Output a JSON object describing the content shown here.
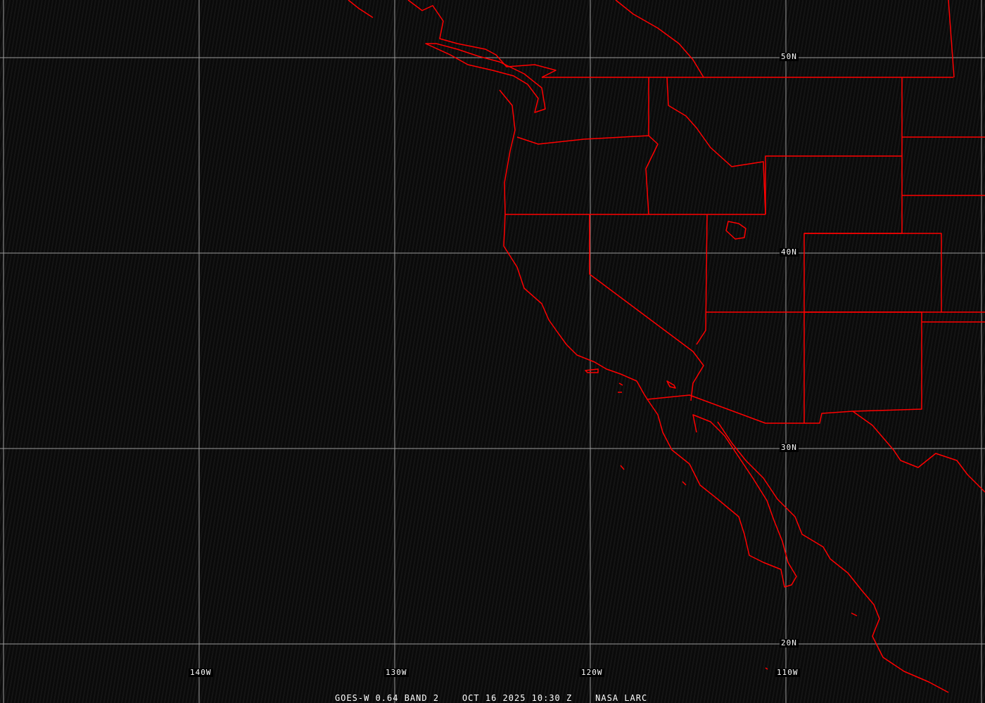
{
  "caption": {
    "satellite": "GOES-W 0.64 BAND 2",
    "datetime": "OCT 16 2025 10:30 Z",
    "source": "NASA LARC"
  },
  "grid": {
    "latitude_labels": [
      "50N",
      "40N",
      "30N",
      "20N"
    ],
    "longitude_labels": [
      "140W",
      "130W",
      "120W",
      "110W"
    ]
  },
  "colors": {
    "boundaries": "#ff0000",
    "grid": "#9a9a9a",
    "background": "#0b0b0b"
  }
}
